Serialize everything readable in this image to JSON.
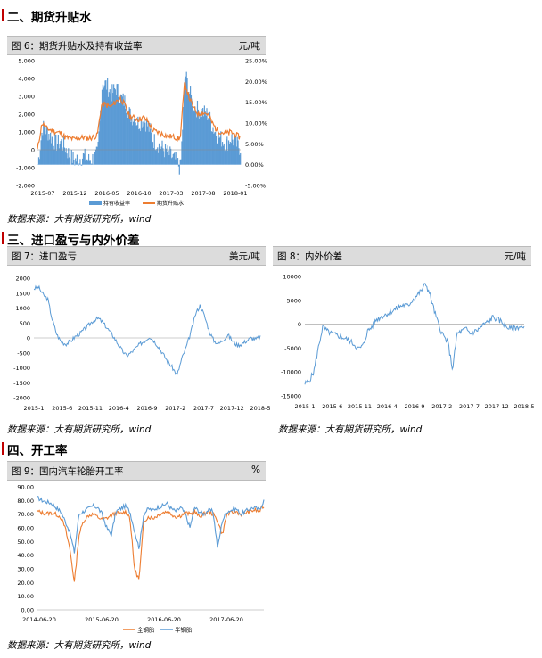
{
  "sections": {
    "s2": "二、期货升贴水",
    "s3": "三、进口盈亏与内外价差",
    "s4": "四、开工率"
  },
  "source_text": "数据来源：大有期货研究所，wind",
  "fig6": {
    "title": "图 6：期货升贴水及持有收益率",
    "unit": "元/吨"
  },
  "fig7": {
    "title": "图 7：进口盈亏",
    "unit": "美元/吨"
  },
  "fig8": {
    "title": "图 8：内外价差",
    "unit": "元/吨"
  },
  "fig9": {
    "title": "图 9：国内汽车轮胎开工率",
    "unit": "%"
  },
  "chart_data": [
    {
      "id": "fig6",
      "type": "area+line",
      "x_ticks": [
        "2015-07",
        "2015-12",
        "2016-05",
        "2016-10",
        "2017-03",
        "2017-08",
        "2018-01"
      ],
      "y_left": {
        "min": -2000,
        "max": 5000,
        "ticks": [
          "-2,000",
          "-1,000",
          "0",
          "1,000",
          "2,000",
          "3,000",
          "4,000",
          "5,000"
        ]
      },
      "y_right": {
        "min": -5,
        "max": 25,
        "ticks": [
          "-5.00%",
          "0.00%",
          "5.00%",
          "10.00%",
          "15.00%",
          "20.00%",
          "25.00%"
        ]
      },
      "series": [
        {
          "name": "持有收益率",
          "type": "area",
          "axis": "right",
          "color": "#5b9bd5",
          "values": [
            0,
            9,
            8,
            6.5,
            5,
            5.5,
            4,
            2,
            1,
            1.5,
            2,
            1,
            1.5,
            2.5,
            20,
            19,
            17,
            18.5,
            16,
            15,
            12,
            11,
            10,
            11,
            9,
            6,
            5,
            4,
            3,
            2,
            1,
            -1,
            22,
            17,
            14,
            13,
            12.5,
            12,
            9,
            7,
            6,
            5,
            6.5,
            5,
            4
          ]
        },
        {
          "name": "期货升贴水",
          "type": "line",
          "axis": "left",
          "color": "#ed7d31",
          "values": [
            0,
            1500,
            1200,
            1100,
            1000,
            950,
            700,
            650,
            600,
            650,
            700,
            650,
            700,
            800,
            2600,
            2500,
            2400,
            2700,
            2900,
            2500,
            1900,
            1800,
            1700,
            1800,
            1600,
            1100,
            1000,
            900,
            800,
            750,
            700,
            600,
            3800,
            2900,
            2300,
            2000,
            2100,
            2000,
            1500,
            1100,
            1000,
            900,
            1000,
            850,
            700
          ]
        }
      ]
    },
    {
      "id": "fig7",
      "type": "line",
      "x_ticks": [
        "2015-1",
        "2015-6",
        "2015-11",
        "2016-4",
        "2016-9",
        "2017-2",
        "2017-7",
        "2017-12",
        "2018-5"
      ],
      "y": {
        "min": -2000,
        "max": 2000,
        "ticks": [
          "2000",
          "1500",
          "1000",
          "500",
          "0",
          "-500",
          "-1000",
          "-1500",
          "-2000"
        ]
      },
      "series": [
        {
          "name": "",
          "color": "#5b9bd5",
          "values": [
            1650,
            1700,
            1450,
            1300,
            600,
            100,
            -150,
            -200,
            -100,
            50,
            150,
            300,
            450,
            600,
            650,
            500,
            300,
            100,
            -150,
            -400,
            -600,
            -500,
            -350,
            -200,
            -100,
            50,
            -100,
            -300,
            -550,
            -800,
            -1000,
            -1250,
            -700,
            -300,
            200,
            800,
            1100,
            700,
            200,
            -100,
            -200,
            -50,
            100,
            -100,
            -250,
            -200,
            -100,
            0,
            -50,
            50
          ]
        }
      ]
    },
    {
      "id": "fig8",
      "type": "line",
      "x_ticks": [
        "2015-1",
        "2015-6",
        "2015-11",
        "2016-4",
        "2016-9",
        "2017-2",
        "2017-7",
        "2017-12",
        "2018-5"
      ],
      "y": {
        "min": -15000,
        "max": 10000,
        "ticks": [
          "10000",
          "5000",
          "0",
          "-5000",
          "-10000",
          "-15000"
        ]
      },
      "series": [
        {
          "name": "",
          "color": "#5b9bd5",
          "values": [
            -12500,
            -11800,
            -10000,
            -5000,
            -500,
            -1500,
            -2000,
            -2300,
            -2600,
            -3000,
            -3500,
            -4200,
            -5200,
            -4500,
            -1500,
            -500,
            1000,
            1500,
            2000,
            2500,
            3000,
            3600,
            4000,
            3800,
            5000,
            6000,
            7000,
            8500,
            6000,
            2500,
            -500,
            -2500,
            -4000,
            -9500,
            -2000,
            -1500,
            -1000,
            -2000,
            -1500,
            -1000,
            0,
            500,
            1500,
            1000,
            500,
            -500,
            -1000,
            -800,
            -500,
            -1000
          ]
        }
      ]
    },
    {
      "id": "fig9",
      "type": "line",
      "x_ticks": [
        "2014-06-20",
        "2015-06-20",
        "2016-06-20",
        "2017-06-20"
      ],
      "y": {
        "min": 0,
        "max": 90,
        "ticks": [
          "90.00",
          "80.00",
          "70.00",
          "60.00",
          "50.00",
          "40.00",
          "30.00",
          "20.00",
          "10.00",
          "0.00"
        ]
      },
      "series": [
        {
          "name": "全钢胎",
          "color": "#ed7d31",
          "values": [
            72,
            71,
            70.5,
            71,
            70,
            68,
            60,
            45,
            20,
            55,
            65,
            69,
            70,
            68,
            66,
            67,
            69,
            71,
            70,
            72,
            68,
            30,
            22,
            65,
            68,
            67,
            69,
            71,
            72,
            70,
            68,
            69,
            71,
            70,
            72,
            68,
            70,
            72,
            70,
            65,
            55,
            70,
            71,
            72,
            70,
            71,
            72,
            73,
            72,
            76
          ]
        },
        {
          "name": "半钢胎",
          "color": "#5b9bd5",
          "values": [
            82,
            80,
            79,
            78,
            75,
            72,
            65,
            57,
            42,
            70,
            72,
            74,
            76,
            75,
            70,
            60,
            55,
            72,
            74,
            76,
            72,
            58,
            45,
            70,
            74,
            73,
            75,
            76,
            78,
            74,
            72,
            75,
            70,
            60,
            75,
            72,
            70,
            73,
            72,
            45,
            65,
            72,
            73,
            74,
            70,
            72,
            74,
            75,
            73,
            80
          ]
        }
      ]
    }
  ]
}
